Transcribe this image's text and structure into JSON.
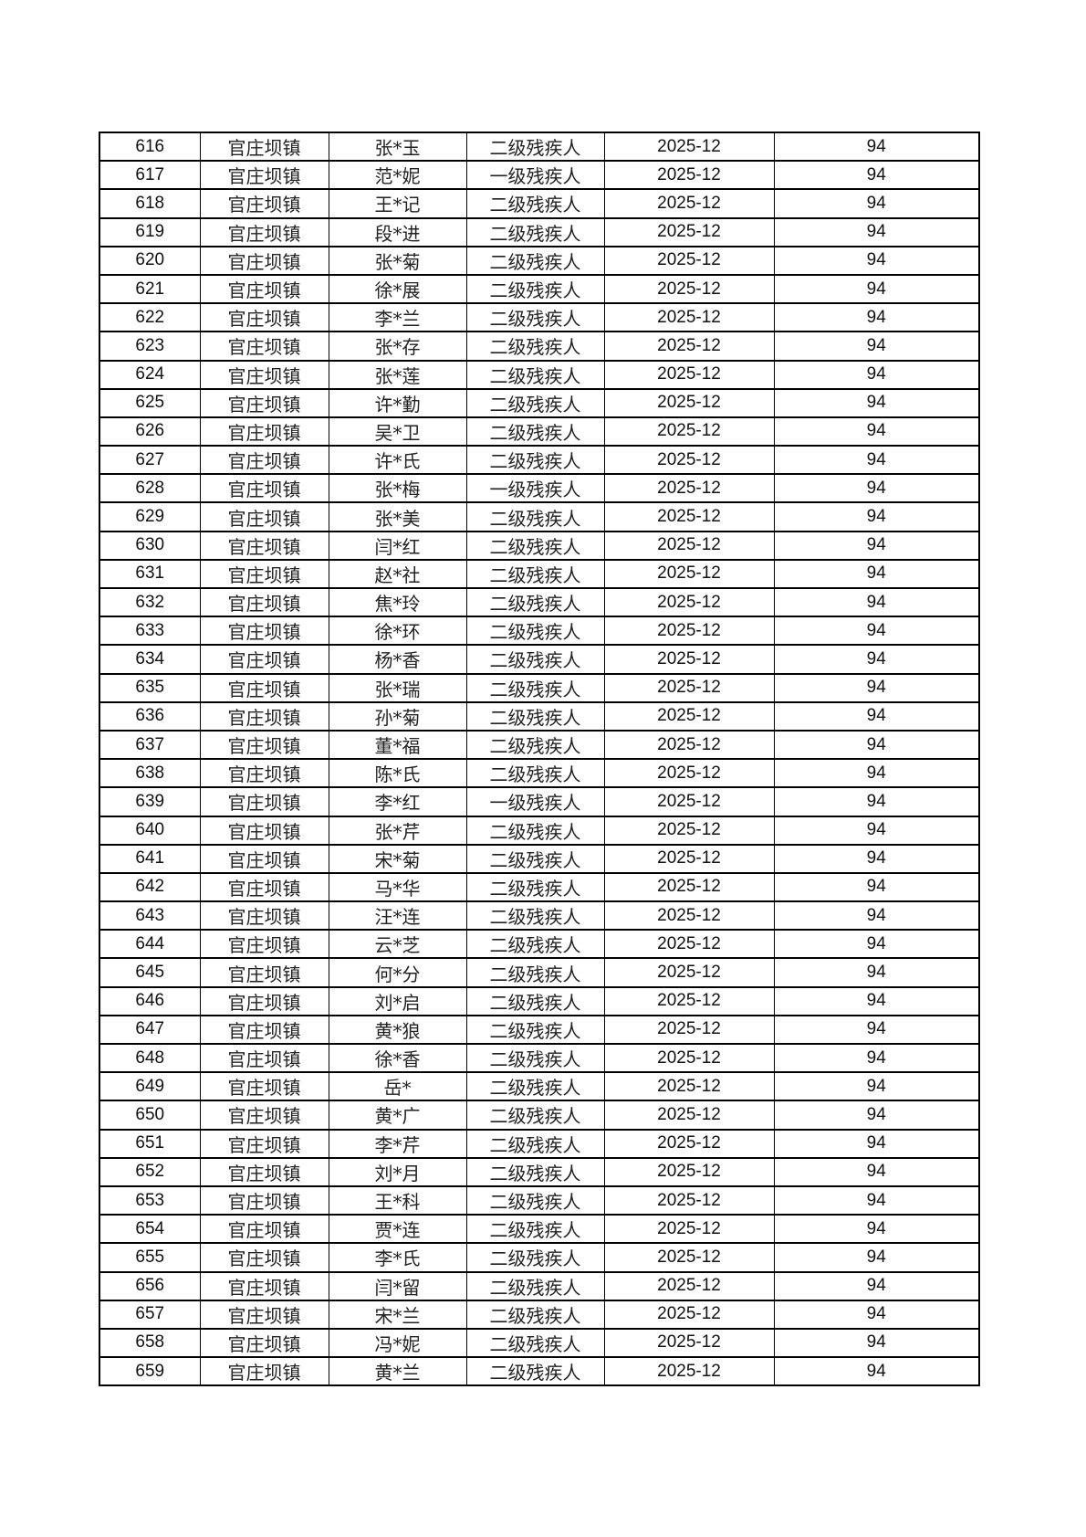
{
  "rows": [
    {
      "no": "616",
      "town": "官庄坝镇",
      "name": "张*玉",
      "level": "二级残疾人",
      "month": "2025-12",
      "amount": "94"
    },
    {
      "no": "617",
      "town": "官庄坝镇",
      "name": "范*妮",
      "level": "一级残疾人",
      "month": "2025-12",
      "amount": "94"
    },
    {
      "no": "618",
      "town": "官庄坝镇",
      "name": "王*记",
      "level": "二级残疾人",
      "month": "2025-12",
      "amount": "94"
    },
    {
      "no": "619",
      "town": "官庄坝镇",
      "name": "段*进",
      "level": "二级残疾人",
      "month": "2025-12",
      "amount": "94"
    },
    {
      "no": "620",
      "town": "官庄坝镇",
      "name": "张*菊",
      "level": "二级残疾人",
      "month": "2025-12",
      "amount": "94"
    },
    {
      "no": "621",
      "town": "官庄坝镇",
      "name": "徐*展",
      "level": "二级残疾人",
      "month": "2025-12",
      "amount": "94"
    },
    {
      "no": "622",
      "town": "官庄坝镇",
      "name": "李*兰",
      "level": "二级残疾人",
      "month": "2025-12",
      "amount": "94"
    },
    {
      "no": "623",
      "town": "官庄坝镇",
      "name": "张*存",
      "level": "二级残疾人",
      "month": "2025-12",
      "amount": "94"
    },
    {
      "no": "624",
      "town": "官庄坝镇",
      "name": "张*莲",
      "level": "二级残疾人",
      "month": "2025-12",
      "amount": "94"
    },
    {
      "no": "625",
      "town": "官庄坝镇",
      "name": "许*勤",
      "level": "二级残疾人",
      "month": "2025-12",
      "amount": "94"
    },
    {
      "no": "626",
      "town": "官庄坝镇",
      "name": "吴*卫",
      "level": "二级残疾人",
      "month": "2025-12",
      "amount": "94"
    },
    {
      "no": "627",
      "town": "官庄坝镇",
      "name": "许*氏",
      "level": "二级残疾人",
      "month": "2025-12",
      "amount": "94"
    },
    {
      "no": "628",
      "town": "官庄坝镇",
      "name": "张*梅",
      "level": "一级残疾人",
      "month": "2025-12",
      "amount": "94"
    },
    {
      "no": "629",
      "town": "官庄坝镇",
      "name": "张*美",
      "level": "二级残疾人",
      "month": "2025-12",
      "amount": "94"
    },
    {
      "no": "630",
      "town": "官庄坝镇",
      "name": "闫*红",
      "level": "二级残疾人",
      "month": "2025-12",
      "amount": "94"
    },
    {
      "no": "631",
      "town": "官庄坝镇",
      "name": "赵*社",
      "level": "二级残疾人",
      "month": "2025-12",
      "amount": "94"
    },
    {
      "no": "632",
      "town": "官庄坝镇",
      "name": "焦*玲",
      "level": "二级残疾人",
      "month": "2025-12",
      "amount": "94"
    },
    {
      "no": "633",
      "town": "官庄坝镇",
      "name": "徐*环",
      "level": "二级残疾人",
      "month": "2025-12",
      "amount": "94"
    },
    {
      "no": "634",
      "town": "官庄坝镇",
      "name": "杨*香",
      "level": "二级残疾人",
      "month": "2025-12",
      "amount": "94"
    },
    {
      "no": "635",
      "town": "官庄坝镇",
      "name": "张*瑞",
      "level": "二级残疾人",
      "month": "2025-12",
      "amount": "94"
    },
    {
      "no": "636",
      "town": "官庄坝镇",
      "name": "孙*菊",
      "level": "二级残疾人",
      "month": "2025-12",
      "amount": "94"
    },
    {
      "no": "637",
      "town": "官庄坝镇",
      "name": "董*福",
      "level": "二级残疾人",
      "month": "2025-12",
      "amount": "94"
    },
    {
      "no": "638",
      "town": "官庄坝镇",
      "name": "陈*氏",
      "level": "二级残疾人",
      "month": "2025-12",
      "amount": "94"
    },
    {
      "no": "639",
      "town": "官庄坝镇",
      "name": "李*红",
      "level": "一级残疾人",
      "month": "2025-12",
      "amount": "94"
    },
    {
      "no": "640",
      "town": "官庄坝镇",
      "name": "张*芹",
      "level": "二级残疾人",
      "month": "2025-12",
      "amount": "94"
    },
    {
      "no": "641",
      "town": "官庄坝镇",
      "name": "宋*菊",
      "level": "二级残疾人",
      "month": "2025-12",
      "amount": "94"
    },
    {
      "no": "642",
      "town": "官庄坝镇",
      "name": "马*华",
      "level": "二级残疾人",
      "month": "2025-12",
      "amount": "94"
    },
    {
      "no": "643",
      "town": "官庄坝镇",
      "name": "汪*连",
      "level": "二级残疾人",
      "month": "2025-12",
      "amount": "94"
    },
    {
      "no": "644",
      "town": "官庄坝镇",
      "name": "云*芝",
      "level": "二级残疾人",
      "month": "2025-12",
      "amount": "94"
    },
    {
      "no": "645",
      "town": "官庄坝镇",
      "name": "何*分",
      "level": "二级残疾人",
      "month": "2025-12",
      "amount": "94"
    },
    {
      "no": "646",
      "town": "官庄坝镇",
      "name": "刘*启",
      "level": "二级残疾人",
      "month": "2025-12",
      "amount": "94"
    },
    {
      "no": "647",
      "town": "官庄坝镇",
      "name": "黄*狼",
      "level": "二级残疾人",
      "month": "2025-12",
      "amount": "94"
    },
    {
      "no": "648",
      "town": "官庄坝镇",
      "name": "徐*香",
      "level": "二级残疾人",
      "month": "2025-12",
      "amount": "94"
    },
    {
      "no": "649",
      "town": "官庄坝镇",
      "name": "岳*",
      "level": "二级残疾人",
      "month": "2025-12",
      "amount": "94"
    },
    {
      "no": "650",
      "town": "官庄坝镇",
      "name": "黄*广",
      "level": "二级残疾人",
      "month": "2025-12",
      "amount": "94"
    },
    {
      "no": "651",
      "town": "官庄坝镇",
      "name": "李*芹",
      "level": "二级残疾人",
      "month": "2025-12",
      "amount": "94"
    },
    {
      "no": "652",
      "town": "官庄坝镇",
      "name": "刘*月",
      "level": "二级残疾人",
      "month": "2025-12",
      "amount": "94"
    },
    {
      "no": "653",
      "town": "官庄坝镇",
      "name": "王*科",
      "level": "二级残疾人",
      "month": "2025-12",
      "amount": "94"
    },
    {
      "no": "654",
      "town": "官庄坝镇",
      "name": "贾*连",
      "level": "二级残疾人",
      "month": "2025-12",
      "amount": "94"
    },
    {
      "no": "655",
      "town": "官庄坝镇",
      "name": "李*氏",
      "level": "二级残疾人",
      "month": "2025-12",
      "amount": "94"
    },
    {
      "no": "656",
      "town": "官庄坝镇",
      "name": "闫*留",
      "level": "二级残疾人",
      "month": "2025-12",
      "amount": "94"
    },
    {
      "no": "657",
      "town": "官庄坝镇",
      "name": "宋*兰",
      "level": "二级残疾人",
      "month": "2025-12",
      "amount": "94"
    },
    {
      "no": "658",
      "town": "官庄坝镇",
      "name": "冯*妮",
      "level": "二级残疾人",
      "month": "2025-12",
      "amount": "94"
    },
    {
      "no": "659",
      "town": "官庄坝镇",
      "name": "黄*兰",
      "level": "二级残疾人",
      "month": "2025-12",
      "amount": "94"
    }
  ]
}
